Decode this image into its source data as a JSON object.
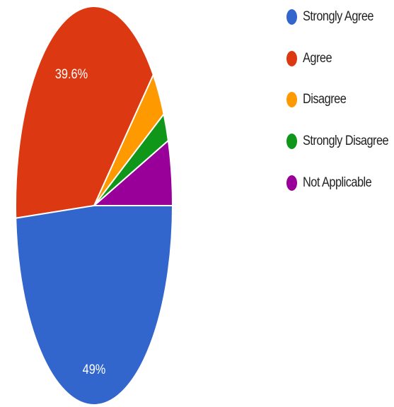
{
  "chart_data": {
    "type": "pie",
    "slices": [
      {
        "name": "Strongly Agree",
        "value": 49.0,
        "color": "#3366cc",
        "label": "49%"
      },
      {
        "name": "Agree",
        "value": 39.6,
        "color": "#dc3912",
        "label": "39.6%"
      },
      {
        "name": "Disagree",
        "value": 3.8,
        "color": "#ff9900",
        "label": ""
      },
      {
        "name": "Strongly Disagree",
        "value": 2.3,
        "color": "#109618",
        "label": ""
      },
      {
        "name": "Not Applicable",
        "value": 5.3,
        "color": "#990099",
        "label": ""
      }
    ],
    "legend_position": "right"
  }
}
